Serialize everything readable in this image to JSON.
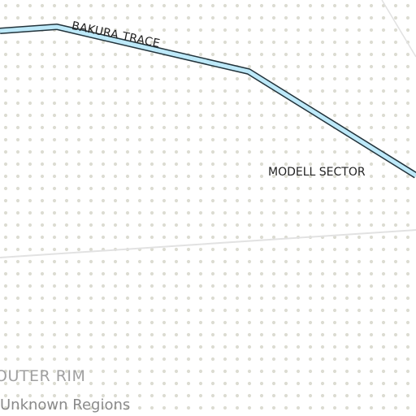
{
  "map": {
    "colors": {
      "background": "#ffffff",
      "dot": "#dcdcd2",
      "route_fill": "#bde9f9",
      "route_outline": "#22333b",
      "border_line": "#e2e2e2",
      "label_dark": "#222222",
      "label_region": "#a0a0a0",
      "label_subregion": "#8a8a8a"
    },
    "route": {
      "name": "BAKURA TRACE"
    },
    "sector": {
      "name": "MODELL SECTOR"
    },
    "region": {
      "name": "OUTER RIM",
      "subregion": "Unknown Regions"
    }
  }
}
